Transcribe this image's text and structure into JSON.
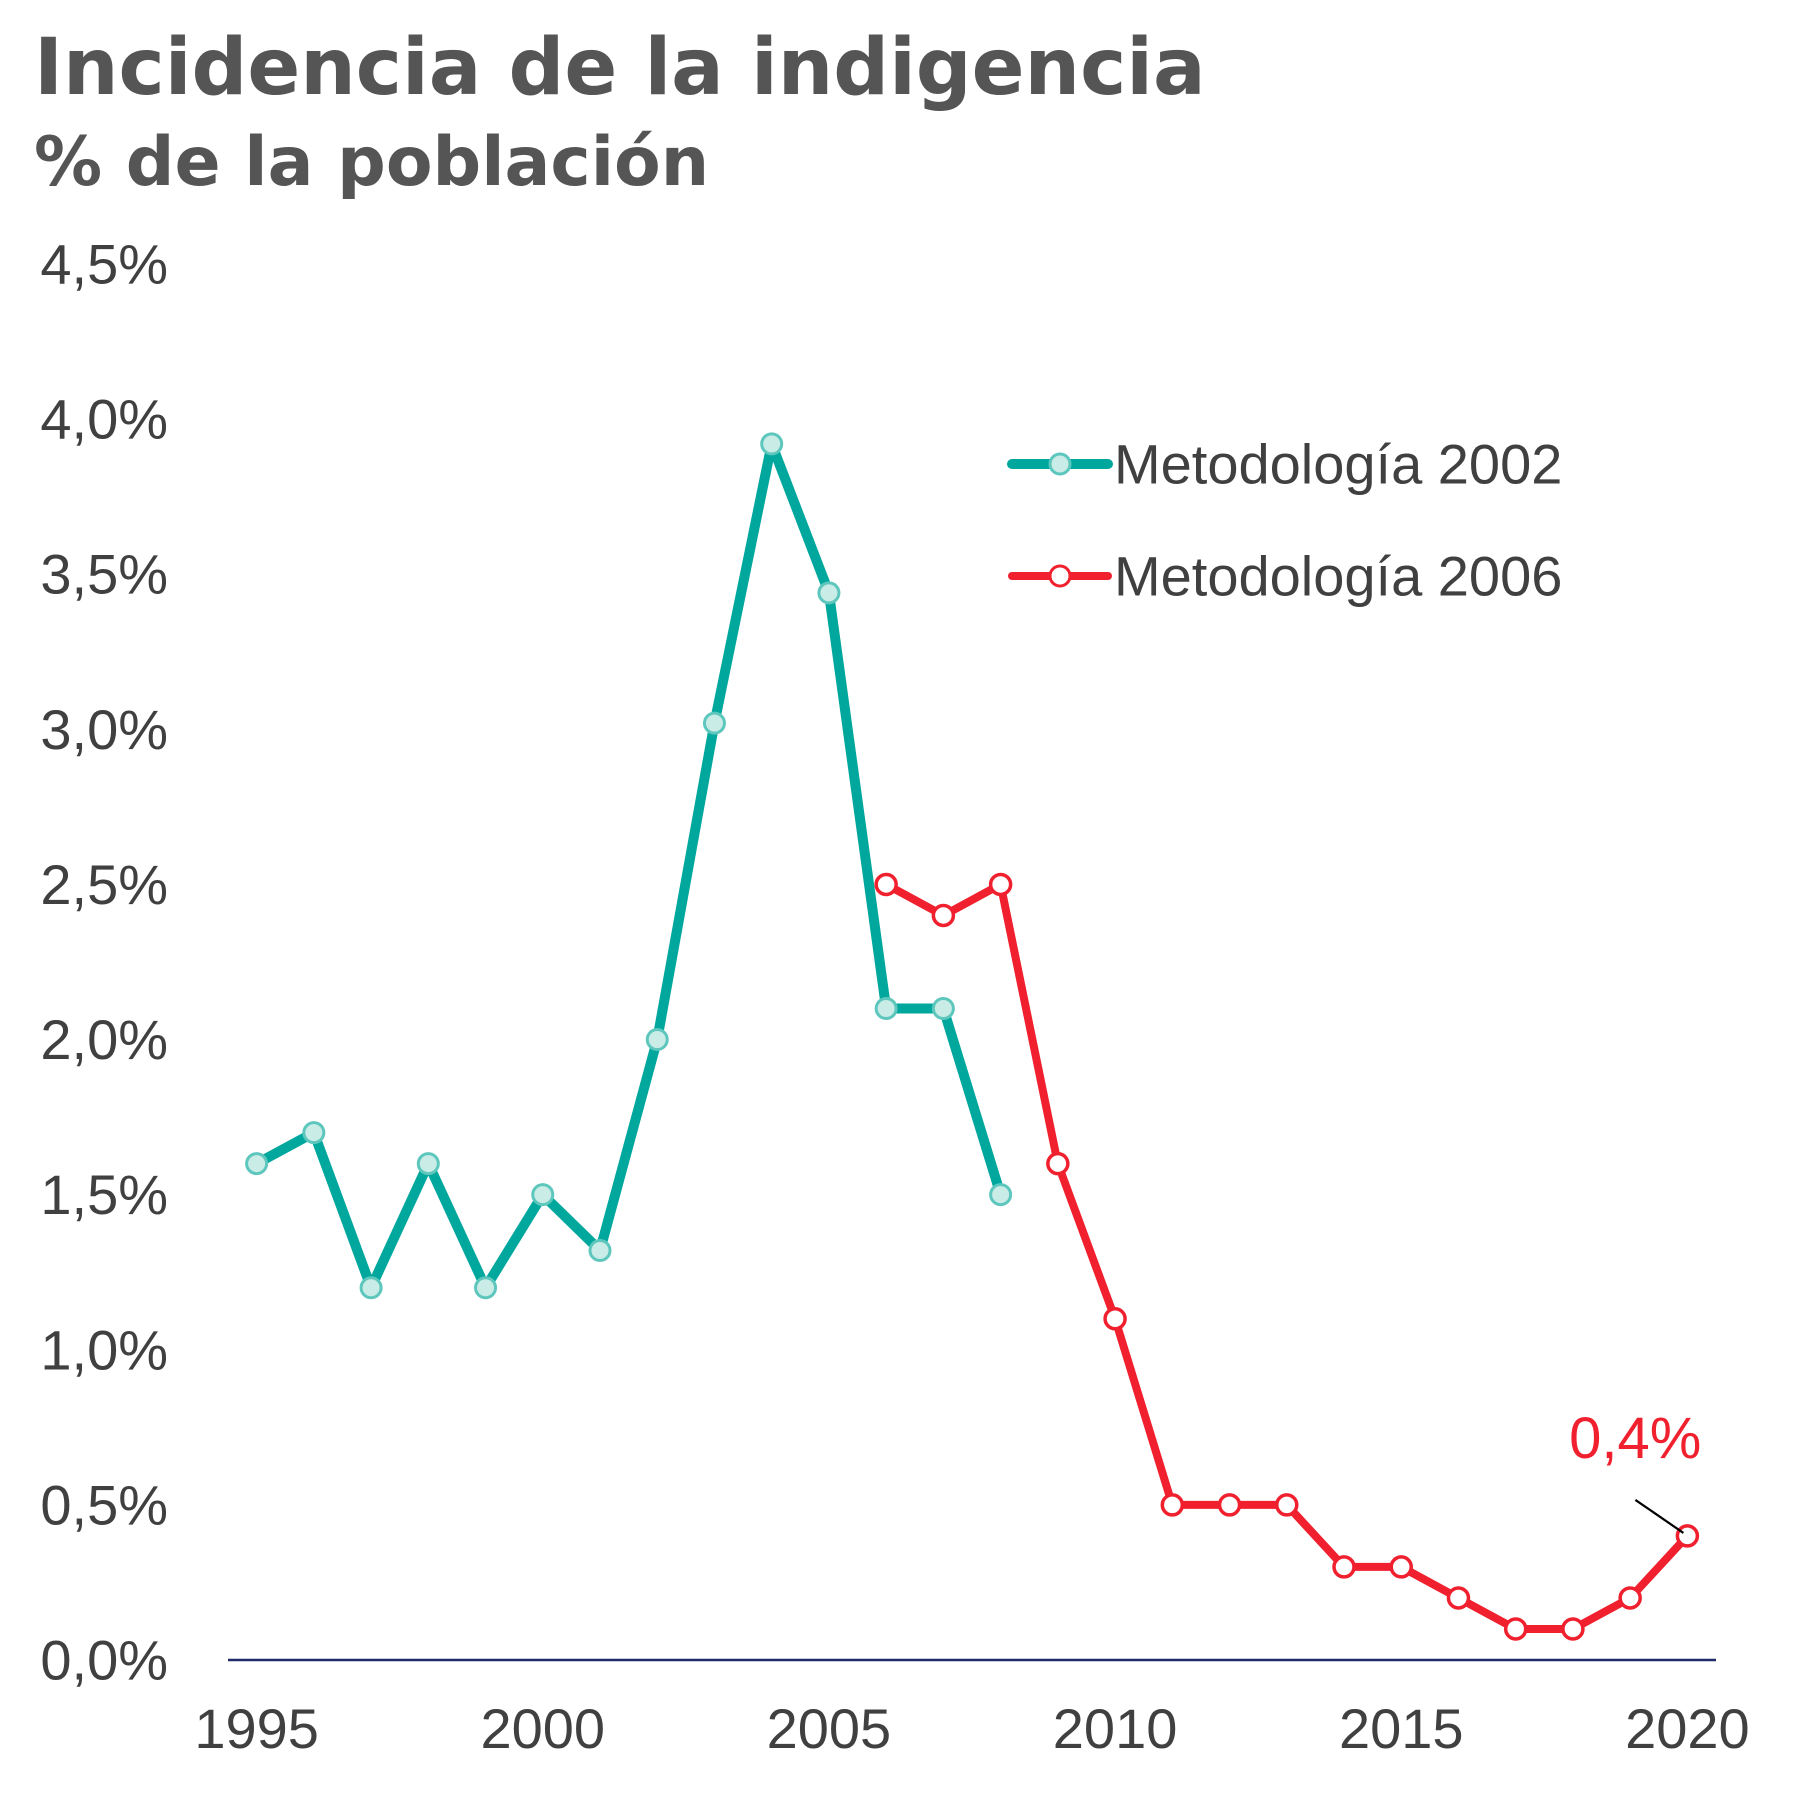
{
  "chart_data": {
    "type": "line",
    "title": "Incidencia de la indigencia",
    "subtitle": "% de la población",
    "xlabel": "",
    "ylabel": "",
    "xlim": [
      1994.5,
      2020.5
    ],
    "ylim": [
      0,
      4.5
    ],
    "x_ticks": [
      1995,
      2000,
      2005,
      2010,
      2015,
      2020
    ],
    "x_tick_labels": [
      "1995",
      "2000",
      "2005",
      "2010",
      "2015",
      "2020"
    ],
    "y_ticks": [
      0,
      0.5,
      1,
      1.5,
      2,
      2.5,
      3,
      3.5,
      4,
      4.5
    ],
    "y_tick_labels": [
      "0,0%",
      "0,5%",
      "1,0%",
      "1,5%",
      "2,0%",
      "2,5%",
      "3,0%",
      "3,5%",
      "4,0%",
      "4,5%"
    ],
    "grid": false,
    "legend_position": "top-right",
    "colors": {
      "axis": "#1f2a6b",
      "text": "#404040",
      "title": "#555555"
    },
    "series": [
      {
        "name": "Metodología 2002",
        "color": "#00a79d",
        "marker_fill": "#c9ece6",
        "marker_stroke": "#5ec7bd",
        "x": [
          1995,
          1996,
          1997,
          1998,
          1999,
          2000,
          2001,
          2002,
          2003,
          2004,
          2005,
          2006,
          2007,
          2008
        ],
        "values": [
          1.6,
          1.7,
          1.2,
          1.6,
          1.2,
          1.5,
          1.32,
          2.0,
          3.02,
          3.92,
          3.44,
          2.1,
          2.1,
          1.5
        ]
      },
      {
        "name": "Metodología 2006",
        "color": "#f0202e",
        "marker_fill": "#ffffff",
        "marker_stroke": "#f0202e",
        "x": [
          2006,
          2007,
          2008,
          2009,
          2010,
          2011,
          2012,
          2013,
          2014,
          2015,
          2016,
          2017,
          2018,
          2019,
          2020
        ],
        "values": [
          2.5,
          2.4,
          2.5,
          1.6,
          1.1,
          0.5,
          0.5,
          0.5,
          0.3,
          0.3,
          0.2,
          0.1,
          0.1,
          0.2,
          0.4
        ]
      }
    ],
    "annotations": [
      {
        "text": "0,4%",
        "x": 2020,
        "y": 0.4,
        "color": "#f0202e",
        "leader_color": "#000000"
      }
    ]
  }
}
